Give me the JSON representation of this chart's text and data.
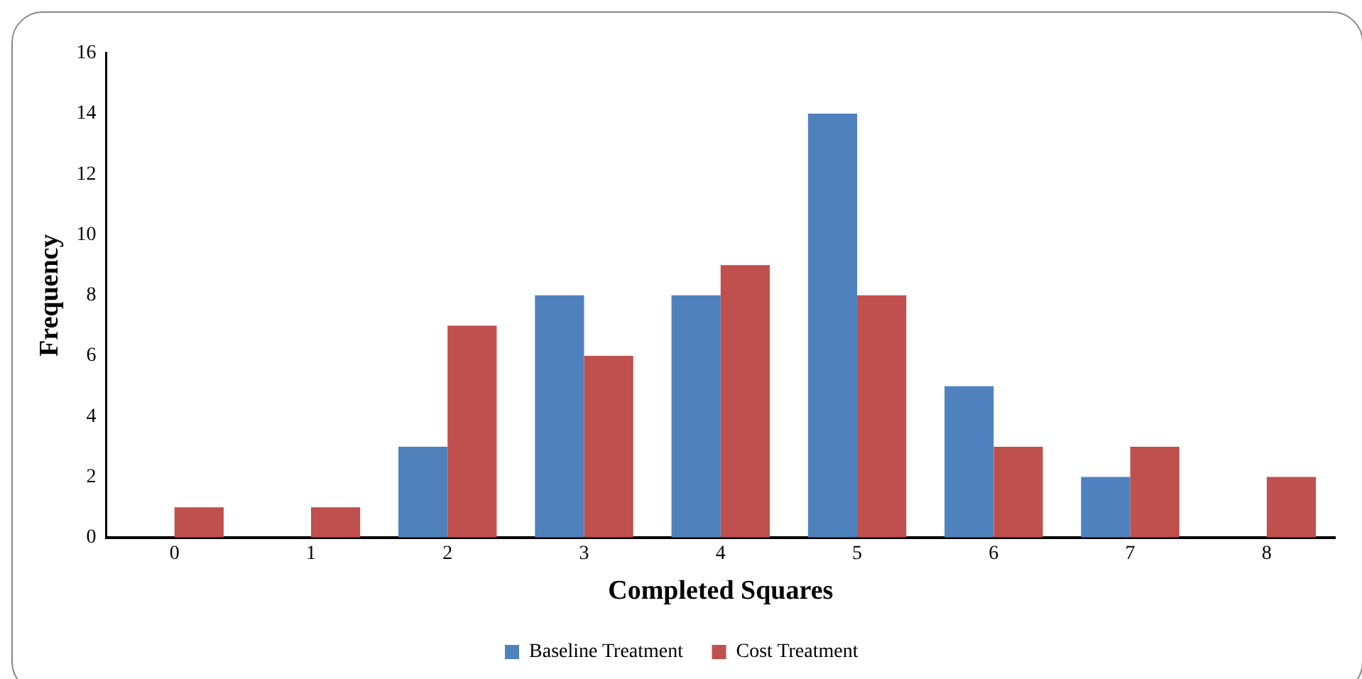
{
  "chart_data": {
    "type": "bar",
    "xlabel": "Completed Squares",
    "ylabel": "Frequency",
    "categories": [
      "0",
      "1",
      "2",
      "3",
      "4",
      "5",
      "6",
      "7",
      "8"
    ],
    "series": [
      {
        "name": "Baseline Treatment",
        "color": "#4f81bd",
        "values": [
          0,
          0,
          3,
          8,
          8,
          14,
          5,
          2,
          0
        ]
      },
      {
        "name": "Cost Treatment",
        "color": "#c0504d",
        "values": [
          1,
          1,
          7,
          6,
          9,
          8,
          3,
          3,
          2
        ]
      }
    ],
    "ylim": [
      0,
      16
    ],
    "yticks": [
      0,
      2,
      4,
      6,
      8,
      10,
      12,
      14,
      16
    ],
    "grid": false,
    "legend": "bottom"
  }
}
